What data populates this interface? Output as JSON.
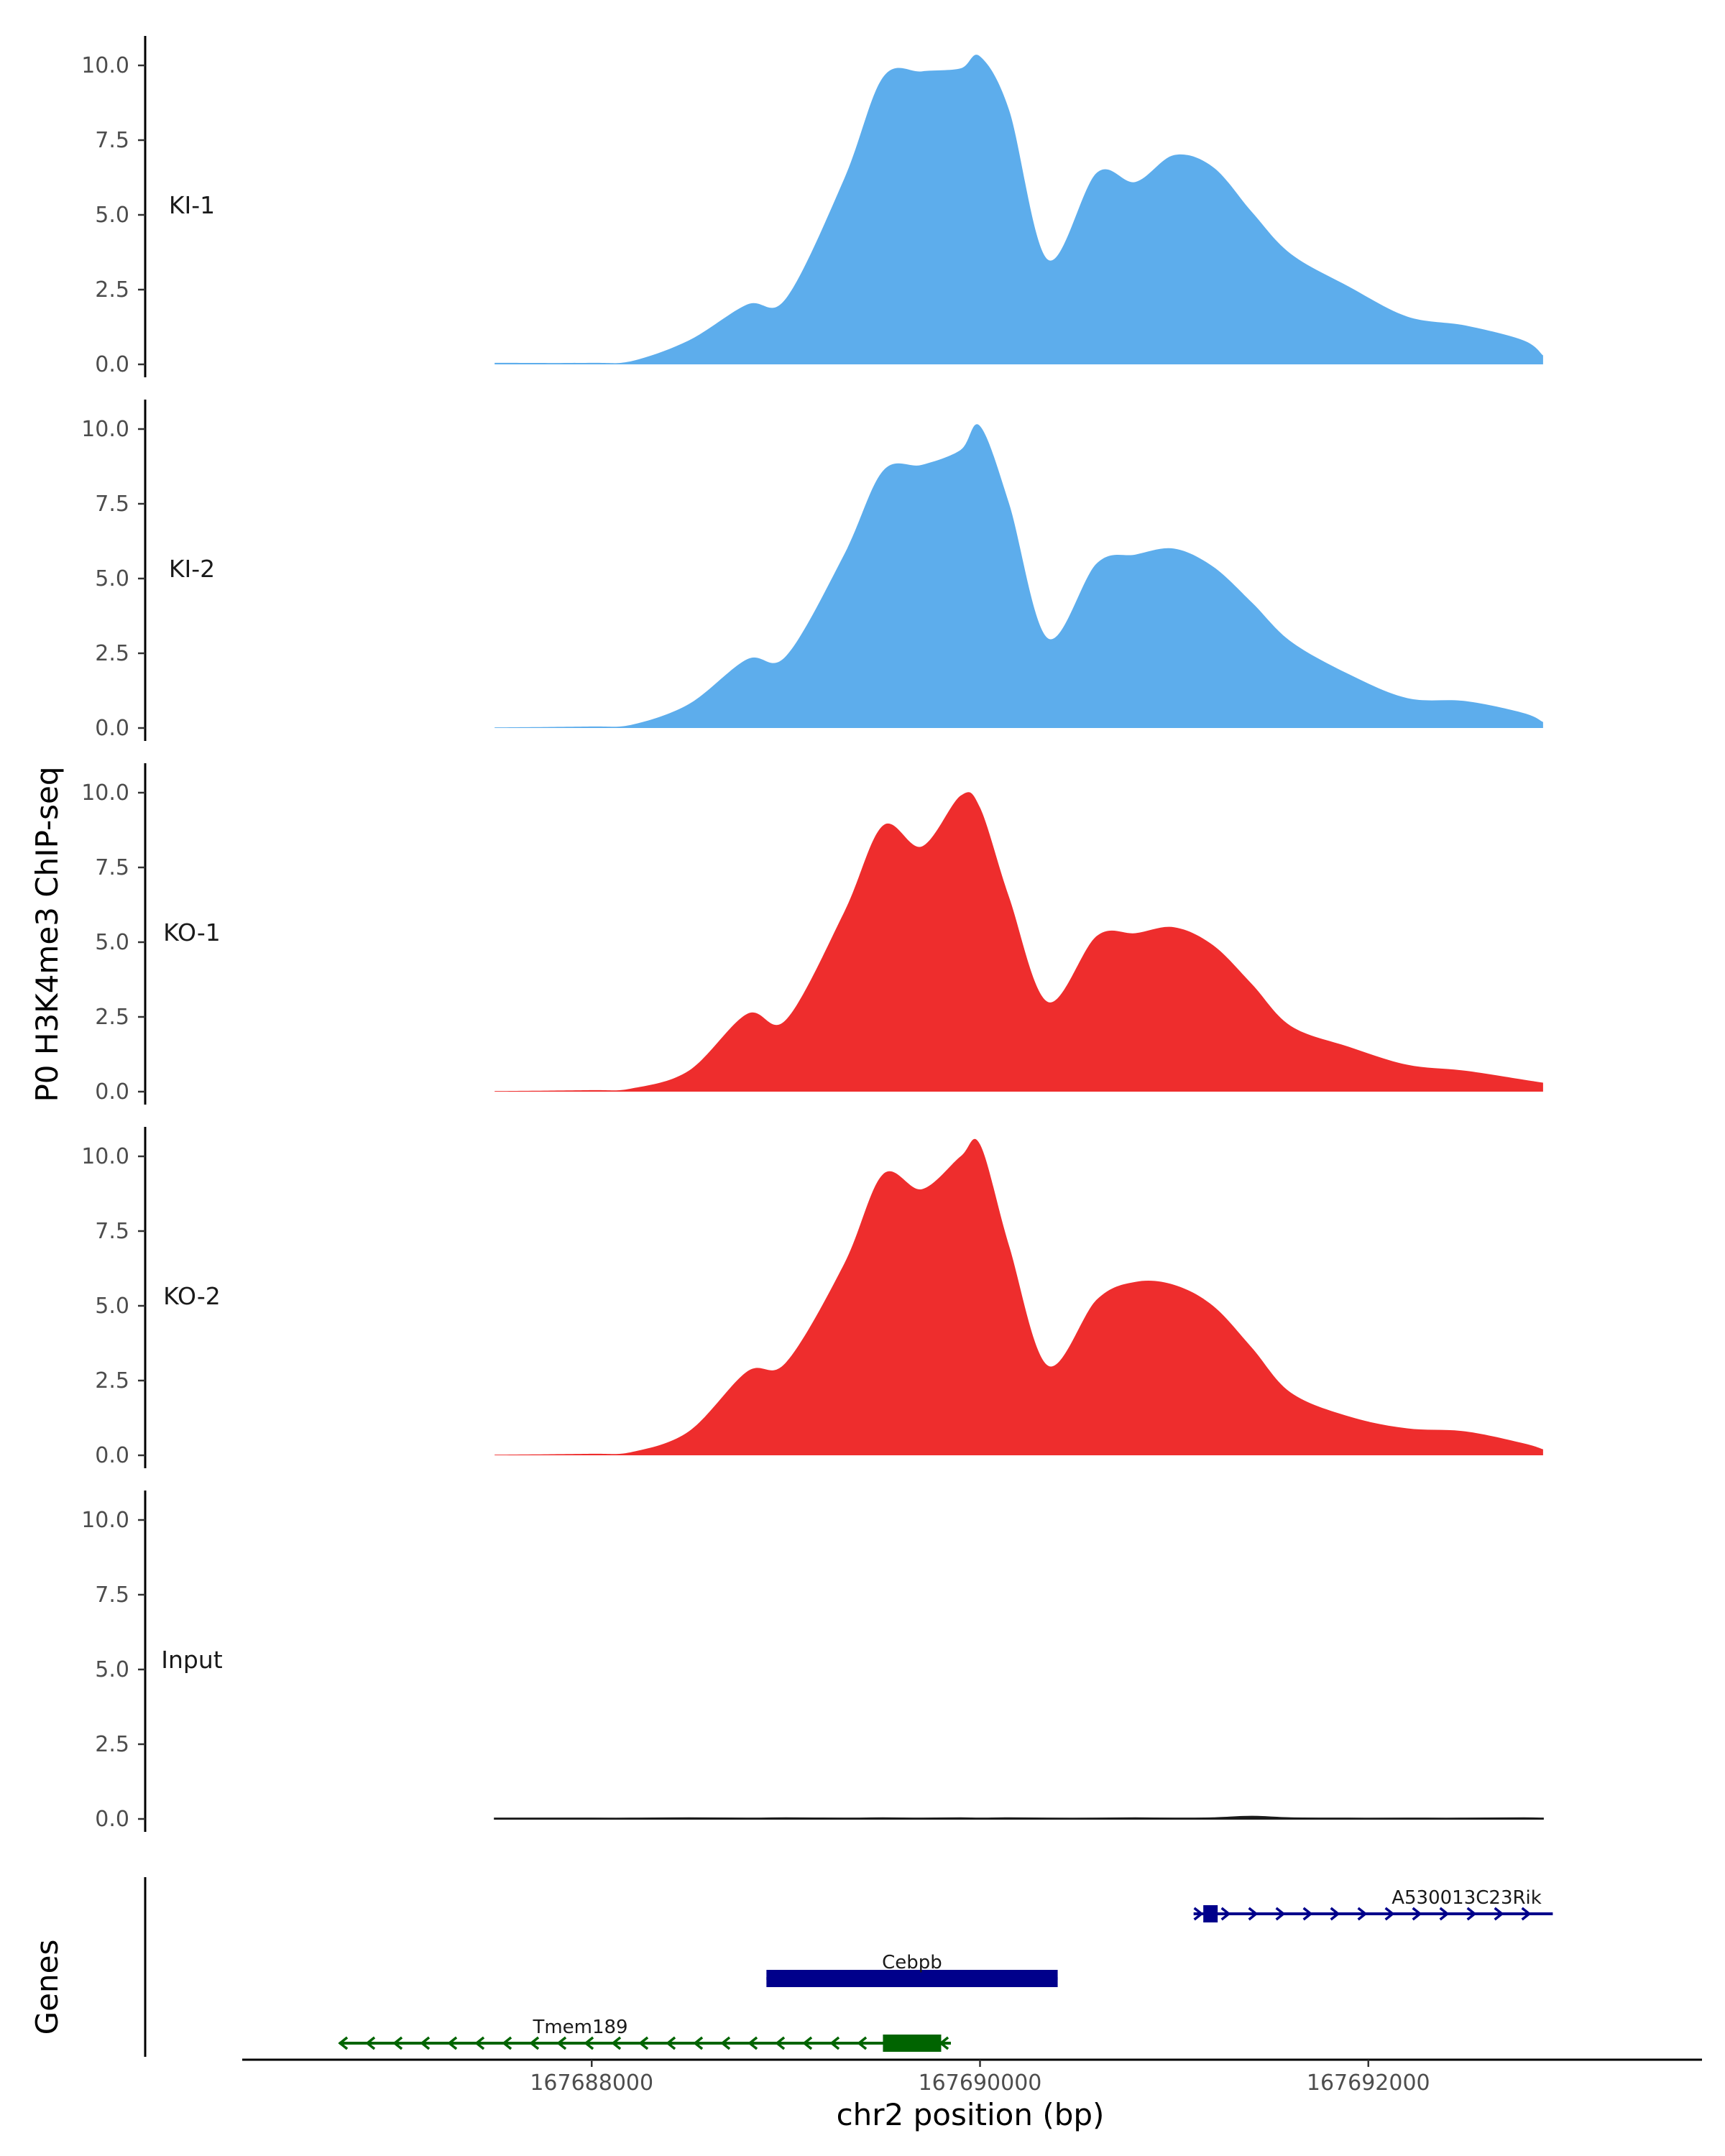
{
  "chart_data": {
    "type": "area",
    "title": "",
    "ylabel": "P0 H3K4me3 ChIP-seq",
    "xlabel": "chr2 position (bp)",
    "ylim": [
      0,
      11
    ],
    "y_ticks": [
      "0.0",
      "2.5",
      "5.0",
      "7.5",
      "10.0"
    ],
    "y_tick_values": [
      0,
      2.5,
      5,
      7.5,
      10
    ],
    "xlim": [
      167686200,
      167693700
    ],
    "x_ticks": [
      "167688000",
      "167690000",
      "167692000"
    ],
    "x_tick_values": [
      167688000,
      167690000,
      167692000
    ],
    "x": [
      167687500,
      167688000,
      167688200,
      167688500,
      167688800,
      167689000,
      167689300,
      167689500,
      167689700,
      167689900,
      167690000,
      167690150,
      167690350,
      167690600,
      167690800,
      167691000,
      167691200,
      167691400,
      167691600,
      167691900,
      167692200,
      167692500,
      167692800,
      167692900
    ],
    "series": [
      {
        "name": "KI-1",
        "color": "#5DADEC",
        "values": [
          0.05,
          0.05,
          0.1,
          0.8,
          2.0,
          2.2,
          6.2,
          9.6,
          9.8,
          9.9,
          10.3,
          8.5,
          3.5,
          6.4,
          6.1,
          7.0,
          6.6,
          5.1,
          3.7,
          2.6,
          1.6,
          1.3,
          0.8,
          0.3
        ]
      },
      {
        "name": "KI-2",
        "color": "#5DADEC",
        "values": [
          0.02,
          0.05,
          0.1,
          0.8,
          2.3,
          2.4,
          5.8,
          8.6,
          8.8,
          9.3,
          10.1,
          7.5,
          3.0,
          5.5,
          5.8,
          6.0,
          5.4,
          4.2,
          2.9,
          1.8,
          1.0,
          0.9,
          0.5,
          0.2
        ]
      },
      {
        "name": "KO-1",
        "color": "#EE2D2D",
        "values": [
          0.02,
          0.05,
          0.1,
          0.7,
          2.6,
          2.4,
          6.0,
          8.9,
          8.2,
          9.9,
          9.5,
          6.5,
          3.0,
          5.2,
          5.3,
          5.5,
          4.9,
          3.6,
          2.2,
          1.5,
          0.9,
          0.7,
          0.4,
          0.3
        ]
      },
      {
        "name": "KO-2",
        "color": "#EE2D2D",
        "values": [
          0.02,
          0.05,
          0.1,
          0.8,
          2.8,
          3.1,
          6.4,
          9.4,
          8.9,
          10.0,
          10.4,
          7.0,
          3.0,
          5.2,
          5.8,
          5.7,
          5.0,
          3.6,
          2.1,
          1.3,
          0.9,
          0.8,
          0.4,
          0.2
        ]
      },
      {
        "name": "Input",
        "color": "#1a1a1a",
        "values": [
          0.02,
          0.02,
          0.02,
          0.03,
          0.02,
          0.03,
          0.02,
          0.03,
          0.02,
          0.03,
          0.02,
          0.03,
          0.02,
          0.02,
          0.03,
          0.02,
          0.03,
          0.08,
          0.03,
          0.02,
          0.02,
          0.02,
          0.03,
          0.02
        ]
      }
    ],
    "genes_track": {
      "label": "Genes",
      "genes": [
        {
          "name": "A530013C23Rik",
          "color": "#00008B",
          "strand": "+",
          "start": 167691100,
          "end": 167692950,
          "exon_start": 167691150,
          "exon_end": 167691220
        },
        {
          "name": "Cebpb",
          "color": "#00008B",
          "strand": "+",
          "start": 167688900,
          "end": 167690400,
          "exon_start": 167688900,
          "exon_end": 167690400
        },
        {
          "name": "Tmem189",
          "color": "#006400",
          "strand": "-",
          "start": 167686700,
          "end": 167689850,
          "exon_start": 167689500,
          "exon_end": 167689800
        }
      ]
    }
  }
}
